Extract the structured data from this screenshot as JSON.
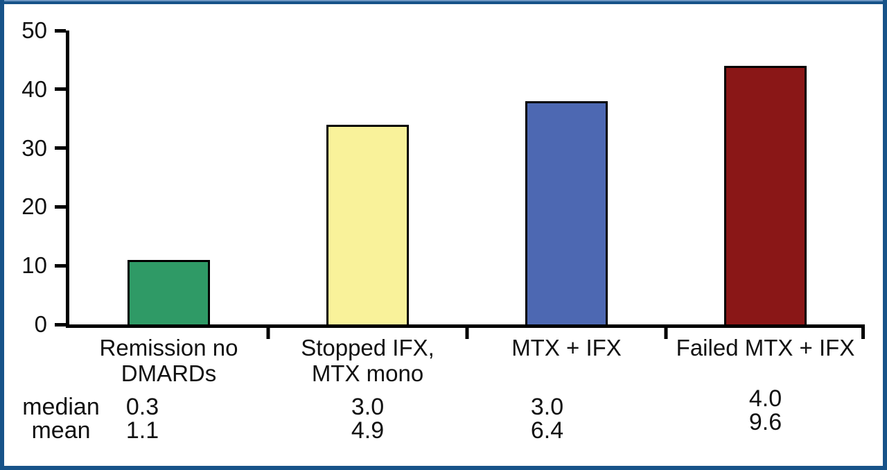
{
  "frame": {
    "border_color": "#175389",
    "background_color": "#ffffff",
    "axis_color": "#000000"
  },
  "chart_data": {
    "type": "bar",
    "title": "",
    "xlabel": "",
    "ylabel": "",
    "categories": [
      "Remission no\nDMARDs",
      "Stopped IFX,\nMTX mono",
      "MTX + IFX",
      "Failed MTX + IFX"
    ],
    "values": [
      11,
      34,
      38,
      44
    ],
    "bar_colors": [
      "#2f9a66",
      "#f9f29a",
      "#4d68b2",
      "#8a1717"
    ],
    "bar_border_color": "#000000",
    "ylim": [
      0,
      50
    ],
    "yticks": [
      0,
      10,
      20,
      30,
      40,
      50
    ],
    "grid": false,
    "legend": false,
    "stats": {
      "median": {
        "label": "median",
        "values": [
          "0.3",
          "3.0",
          "3.0",
          "4.0"
        ]
      },
      "mean": {
        "label": "mean",
        "values": [
          "1.1",
          "4.9",
          "6.4",
          "9.6"
        ]
      }
    }
  }
}
